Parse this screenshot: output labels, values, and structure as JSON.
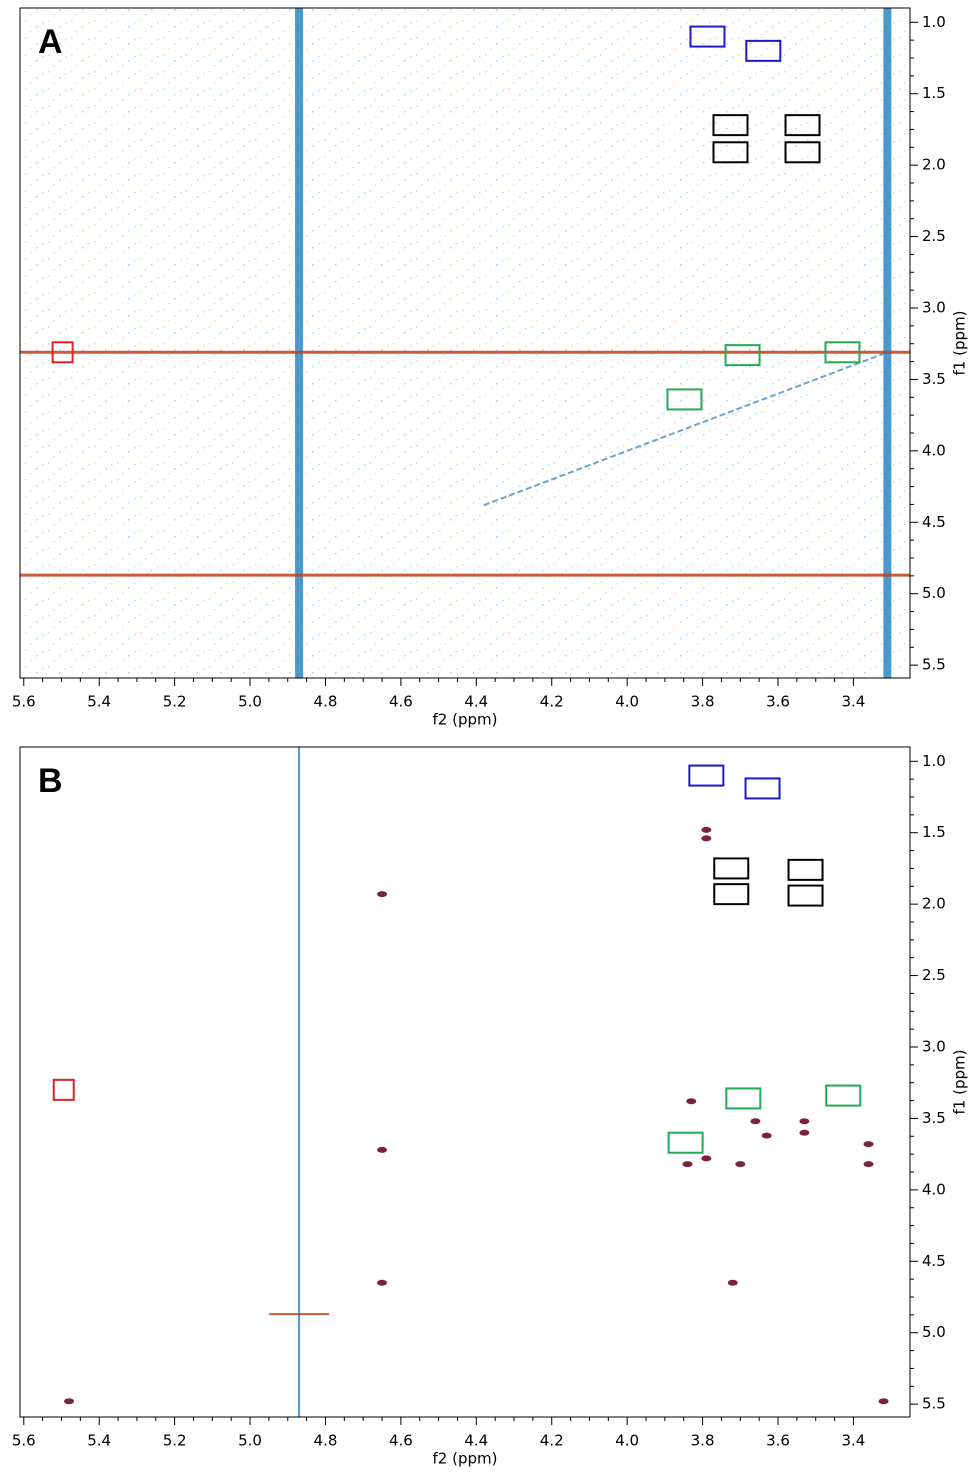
{
  "chart_data": [
    {
      "type": "nmr2d",
      "panel": "A",
      "xlabel": "f2 (ppm)",
      "ylabel": "f1 (ppm)",
      "xlim": [
        5.61,
        3.25
      ],
      "ylim": [
        0.9,
        5.59
      ],
      "xticks": [
        5.6,
        5.4,
        5.2,
        {
          "value": 5,
          "label": "5.0"
        },
        4.8,
        4.6,
        4.4,
        4.2,
        {
          "value": 4,
          "label": "4.0"
        },
        3.8,
        3.6,
        3.4
      ],
      "yticks": [
        {
          "value": 1,
          "label": "1.0"
        },
        1.5,
        {
          "value": 2,
          "label": "2.0"
        },
        2.5,
        {
          "value": 3,
          "label": "3.0"
        },
        3.5,
        {
          "value": 4,
          "label": "4.0"
        },
        4.5,
        {
          "value": 5,
          "label": "5.0"
        },
        5.5
      ],
      "noise": true,
      "diagonal": [
        4.38,
        3.31
      ],
      "solvent_lines": {
        "x": [
          4.87,
          3.31
        ],
        "y": [
          4.87,
          3.31
        ]
      },
      "series": [
        {
          "color": "#1a1acc",
          "x": [
            3.787,
            3.639
          ],
          "y": [
            1.1,
            1.2
          ]
        },
        {
          "color": "#000000",
          "x": [
            3.726,
            3.726,
            3.535,
            3.535
          ],
          "y": [
            1.72,
            1.91,
            1.72,
            1.91
          ]
        },
        {
          "color": "#22aa55",
          "x": [
            3.694,
            3.429,
            3.848
          ],
          "y": [
            3.33,
            3.31,
            3.64
          ]
        },
        {
          "color": "#dd2222",
          "x": [
            5.497
          ],
          "y": [
            3.31
          ]
        }
      ]
    },
    {
      "type": "nmr2d",
      "panel": "B",
      "xlabel": "f2 (ppm)",
      "ylabel": "f1 (ppm)",
      "xlim": [
        5.61,
        3.25
      ],
      "ylim": [
        0.9,
        5.59
      ],
      "xticks": [
        5.6,
        5.4,
        5.2,
        {
          "value": 5,
          "label": "5.0"
        },
        4.8,
        4.6,
        4.4,
        4.2,
        {
          "value": 4,
          "label": "4.0"
        },
        3.8,
        3.6,
        3.4
      ],
      "yticks": [
        {
          "value": 1,
          "label": "1.0"
        },
        1.5,
        {
          "value": 2,
          "label": "2.0"
        },
        2.5,
        {
          "value": 3,
          "label": "3.0"
        },
        3.5,
        {
          "value": 4,
          "label": "4.0"
        },
        4.5,
        {
          "value": 5,
          "label": "5.0"
        },
        5.5
      ],
      "noise": false,
      "solvent_lines": {
        "x": [
          4.87
        ],
        "y": [
          4.87
        ]
      },
      "peaks": {
        "x": [
          5.48,
          3.32,
          4.65,
          4.65,
          4.65,
          3.72,
          3.84,
          3.7,
          3.36,
          3.36,
          3.53,
          3.53,
          3.66,
          3.63,
          3.79,
          3.83,
          3.79,
          3.79
        ],
        "y": [
          5.48,
          5.48,
          4.65,
          3.72,
          1.93,
          4.65,
          3.82,
          3.82,
          3.82,
          3.68,
          3.52,
          3.6,
          3.52,
          3.62,
          3.78,
          3.38,
          1.48,
          1.54
        ]
      },
      "series": [
        {
          "color": "#1a1acc",
          "x": [
            3.79,
            3.641
          ],
          "y": [
            1.1,
            1.19
          ]
        },
        {
          "color": "#000000",
          "x": [
            3.724,
            3.724,
            3.527,
            3.527
          ],
          "y": [
            1.75,
            1.93,
            1.76,
            1.94
          ]
        },
        {
          "color": "#22aa55",
          "x": [
            3.692,
            3.427,
            3.845
          ],
          "y": [
            3.36,
            3.34,
            3.67
          ]
        },
        {
          "color": "#dd2222",
          "x": [
            5.494
          ],
          "y": [
            3.3
          ]
        }
      ]
    }
  ]
}
